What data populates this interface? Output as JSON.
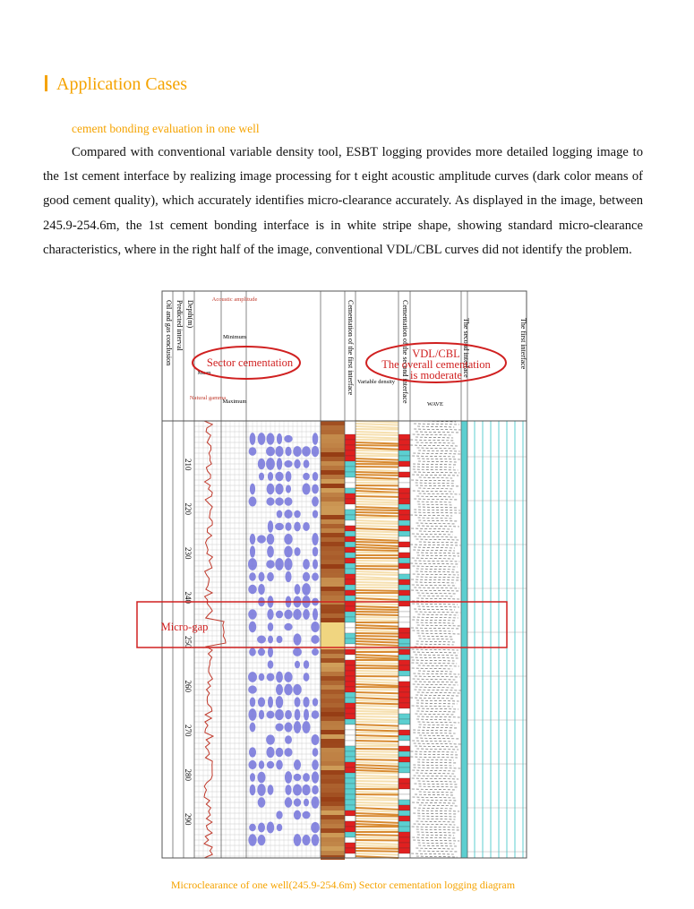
{
  "section_title": "Application Cases",
  "subtitle": "cement bonding evaluation in one well",
  "paragraph": "Compared with conventional variable density tool, ESBT logging provides more detailed logging image to the 1st cement interface by realizing image processing for t eight acoustic amplitude curves (dark color means of good cement quality), which accurately identifies micro-clearance accurately. As displayed in the image, between 245.9-254.6m, the 1st cement bonding interface is in white stripe shape, showing standard micro-clearance characteristics, where in the right half of the image, conventional VDL/CBL curves did not identify the problem.",
  "figure": {
    "track_headers": [
      "Oil and gas conclusion",
      "Predicted interval",
      "Depth(m)",
      "Cementation of the first interface",
      "Cementation of the second interface",
      "The second interface",
      "The first interface"
    ],
    "header_labels": [
      "Acoustic amplitude",
      "Minimum",
      "Mean",
      "Maximum",
      "Natural gamma",
      "Variable density",
      "WAVE"
    ],
    "depths": [
      "210",
      "220",
      "230",
      "240",
      "250",
      "260",
      "270",
      "280",
      "290"
    ],
    "annotations": [
      "Sector cementation",
      "VDL/CBL",
      "The overall cementation",
      "is moderate",
      "Micro-gap"
    ]
  },
  "caption": "Microclearance of one well(245.9-254.6m) Sector cementation logging diagram"
}
